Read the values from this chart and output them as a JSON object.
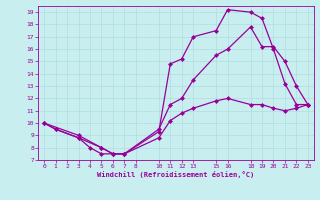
{
  "xlabel": "Windchill (Refroidissement éolien,°C)",
  "bg_color": "#c8eef0",
  "line_color": "#990099",
  "grid_color": "#b0dde0",
  "xlim": [
    -0.5,
    23.5
  ],
  "ylim": [
    7,
    19.5
  ],
  "xticks": [
    0,
    1,
    2,
    3,
    4,
    5,
    6,
    7,
    8,
    10,
    11,
    12,
    13,
    15,
    16,
    18,
    19,
    20,
    21,
    22,
    23
  ],
  "yticks": [
    7,
    8,
    9,
    10,
    11,
    12,
    13,
    14,
    15,
    16,
    17,
    18,
    19
  ],
  "line1_x": [
    0,
    1,
    3,
    4,
    5,
    6,
    7,
    10,
    11,
    12,
    13,
    15,
    16,
    18,
    19,
    20,
    21,
    22,
    23
  ],
  "line1_y": [
    10,
    9.5,
    8.8,
    8.0,
    7.5,
    7.5,
    7.5,
    9.3,
    14.8,
    15.2,
    17.0,
    17.5,
    19.2,
    19.0,
    18.5,
    16.0,
    13.2,
    11.5,
    11.5
  ],
  "line2_x": [
    0,
    1,
    3,
    5,
    6,
    7,
    10,
    11,
    12,
    13,
    15,
    16,
    18,
    19,
    20,
    21,
    22,
    23
  ],
  "line2_y": [
    10,
    9.5,
    8.8,
    8.0,
    7.5,
    7.5,
    8.8,
    10.2,
    10.8,
    11.2,
    11.8,
    12.0,
    11.5,
    11.5,
    11.2,
    11.0,
    11.2,
    11.5
  ],
  "line3_x": [
    0,
    3,
    5,
    6,
    7,
    10,
    11,
    12,
    13,
    15,
    16,
    18,
    19,
    20,
    21,
    22,
    23
  ],
  "line3_y": [
    10,
    9.0,
    8.0,
    7.5,
    7.5,
    9.5,
    11.5,
    12.0,
    13.5,
    15.5,
    16.0,
    17.8,
    16.2,
    16.2,
    15.0,
    13.0,
    11.5
  ],
  "markersize": 2.5,
  "linewidth": 0.9
}
